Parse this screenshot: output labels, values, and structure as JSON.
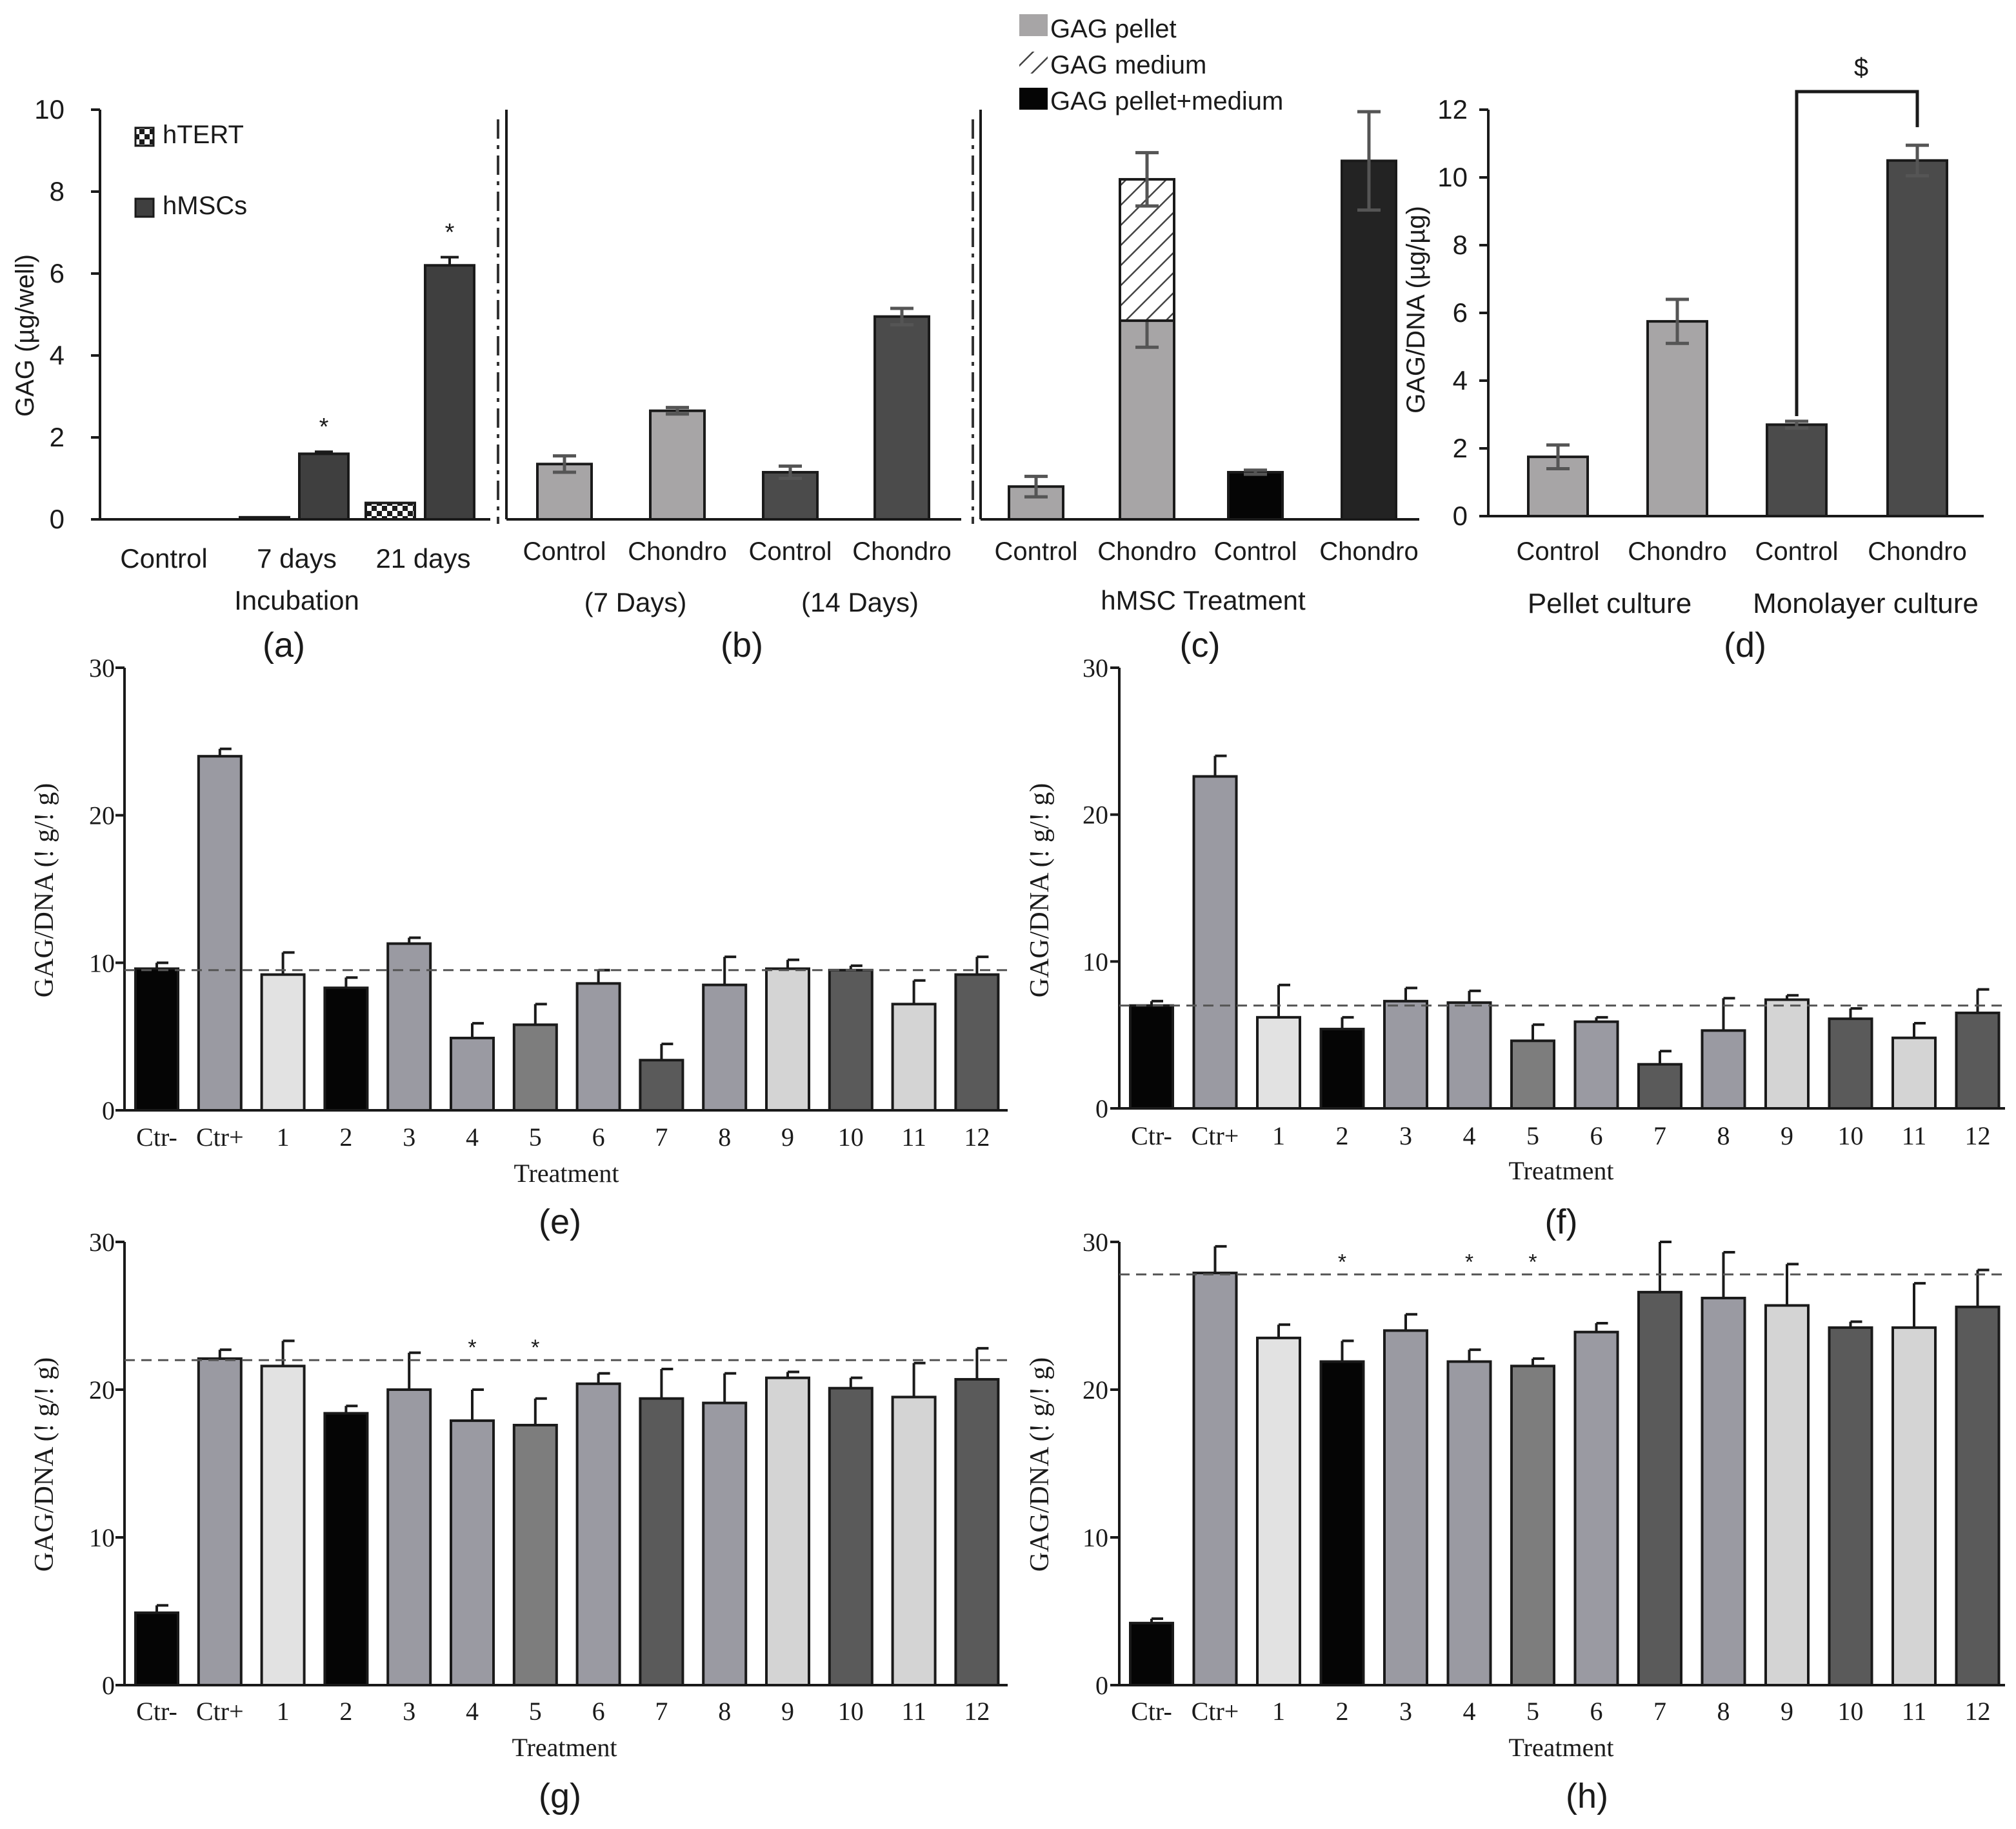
{
  "colors": {
    "black": "#050505",
    "dark": "#3f3f3f",
    "mid_dark": "#5a5a5a",
    "medium": "#7d7d7d",
    "gray": "#9a9aa2",
    "light": "#d4d4d4",
    "pellet_gray": "#a7a5a6",
    "top_dark": "#4b4b4b"
  },
  "chart_data": [
    {
      "id": "a",
      "caption": "(a)",
      "type": "bar",
      "ylabel": "GAG (µg/well)",
      "xlabel": "Incubation",
      "categories": [
        "Control",
        "7 days",
        "21 days"
      ],
      "ylim": [
        0,
        10
      ],
      "yticks": [
        "0",
        "2",
        "4",
        "6",
        "8",
        "10"
      ],
      "series": [
        {
          "name": "hTERT",
          "pattern": "checker",
          "values": [
            0,
            0.05,
            0.4
          ]
        },
        {
          "name": "hMSCs",
          "color": "#3f3f3f",
          "values": [
            0,
            1.6,
            6.2
          ],
          "errors": [
            0,
            0.05,
            0.2
          ],
          "marks": [
            "",
            "*",
            "*"
          ]
        }
      ],
      "legend": "top-left"
    },
    {
      "id": "b",
      "caption": "(b)",
      "type": "bar",
      "categories": [
        "Control",
        "Chondro",
        "Control",
        "Chondro"
      ],
      "group_labels": [
        "(7 Days)",
        "(14 Days)"
      ],
      "ylim": [
        0,
        10
      ],
      "values": [
        1.35,
        2.65,
        1.15,
        4.95
      ],
      "errors": [
        0.2,
        0.08,
        0.15,
        0.2
      ],
      "colors": [
        "#a7a5a6",
        "#a7a5a6",
        "#4b4b4b",
        "#4b4b4b"
      ]
    },
    {
      "id": "c",
      "caption": "(c)",
      "type": "bar",
      "xlabel": "hMSC Treatment",
      "categories": [
        "Control",
        "Chondro",
        "Control",
        "Chondro"
      ],
      "ylim": [
        0,
        10
      ],
      "legend_entries": [
        "GAG pellet",
        "GAG medium",
        "GAG pellet+medium"
      ],
      "legend": "top",
      "series": [
        {
          "name": "GAG pellet",
          "values": [
            0.8,
            4.85,
            0,
            0
          ],
          "errors": [
            0.25,
            0.65,
            0,
            0
          ]
        },
        {
          "name": "GAG medium",
          "values": [
            0,
            3.45,
            0,
            0
          ],
          "errors": [
            0,
            0.65,
            0,
            0
          ]
        },
        {
          "name": "GAG pellet+medium",
          "values": [
            0,
            0,
            1.15,
            8.75
          ],
          "errors": [
            0,
            0,
            0.05,
            1.2
          ]
        }
      ]
    },
    {
      "id": "d",
      "caption": "(d)",
      "type": "bar",
      "ylabel": "GAG/DNA (µg/µg)",
      "categories": [
        "Control",
        "Chondro",
        "Control",
        "Chondro"
      ],
      "group_labels": [
        "Pellet culture",
        "Monolayer culture"
      ],
      "ylim": [
        0,
        12
      ],
      "yticks": [
        "0",
        "2",
        "4",
        "6",
        "8",
        "10",
        "12"
      ],
      "values": [
        1.75,
        5.75,
        2.7,
        10.5
      ],
      "errors": [
        0.35,
        0.65,
        0.1,
        0.45
      ],
      "colors": [
        "#a7a5a6",
        "#a7a5a6",
        "#4b4b4b",
        "#4b4b4b"
      ],
      "annotation": "$"
    },
    {
      "id": "e",
      "caption": "(e)",
      "type": "bar",
      "ylabel": "GAG/DNA (! g/! g)",
      "xlabel": "Treatment",
      "categories": [
        "Ctr-",
        "Ctr+",
        "1",
        "2",
        "3",
        "4",
        "5",
        "6",
        "7",
        "8",
        "9",
        "10",
        "11",
        "12"
      ],
      "ylim": [
        0,
        30
      ],
      "yticks": [
        "0",
        "10",
        "20",
        "30"
      ],
      "reference_line": 9.5,
      "values": [
        9.6,
        24.0,
        9.2,
        8.3,
        11.3,
        4.9,
        5.8,
        8.6,
        3.4,
        8.5,
        9.6,
        9.5,
        7.2,
        9.2
      ],
      "errors": [
        0.4,
        0.5,
        1.5,
        0.7,
        0.4,
        1.0,
        1.4,
        0.9,
        1.1,
        1.9,
        0.6,
        0.3,
        1.6,
        1.2
      ],
      "colors": [
        "#050505",
        "#9a9aa2",
        "#e2e2e2",
        "#050505",
        "#9a9aa2",
        "#9a9aa2",
        "#7d7d7d",
        "#9a9aa2",
        "#5a5a5a",
        "#9a9aa2",
        "#d4d4d4",
        "#5a5a5a",
        "#d4d4d4",
        "#5a5a5a"
      ],
      "marks": [
        "",
        "",
        "",
        "",
        "",
        "",
        "",
        "",
        "",
        "",
        "",
        "",
        "",
        ""
      ]
    },
    {
      "id": "f",
      "caption": "(f)",
      "type": "bar",
      "ylabel": "GAG/DNA (! g/! g)",
      "xlabel": "Treatment",
      "categories": [
        "Ctr-",
        "Ctr+",
        "1",
        "2",
        "3",
        "4",
        "5",
        "6",
        "7",
        "8",
        "9",
        "10",
        "11",
        "12"
      ],
      "ylim": [
        0,
        30
      ],
      "yticks": [
        "0",
        "10",
        "20",
        "30"
      ],
      "reference_line": 7.0,
      "values": [
        7.0,
        22.6,
        6.2,
        5.4,
        7.3,
        7.2,
        4.6,
        5.9,
        3.0,
        5.3,
        7.4,
        6.1,
        4.8,
        6.5
      ],
      "errors": [
        0.3,
        1.4,
        2.2,
        0.8,
        0.9,
        0.8,
        1.1,
        0.3,
        0.9,
        2.2,
        0.3,
        0.7,
        1.0,
        1.6
      ],
      "colors": [
        "#050505",
        "#9a9aa2",
        "#e2e2e2",
        "#050505",
        "#9a9aa2",
        "#9a9aa2",
        "#7d7d7d",
        "#9a9aa2",
        "#5a5a5a",
        "#9a9aa2",
        "#d4d4d4",
        "#5a5a5a",
        "#d4d4d4",
        "#5a5a5a"
      ],
      "marks": [
        "",
        "",
        "",
        "",
        "",
        "",
        "",
        "",
        "",
        "",
        "",
        "",
        "",
        ""
      ]
    },
    {
      "id": "g",
      "caption": "(g)",
      "type": "bar",
      "ylabel": "GAG/DNA (! g/! g)",
      "xlabel": "Treatment",
      "categories": [
        "Ctr-",
        "Ctr+",
        "1",
        "2",
        "3",
        "4",
        "5",
        "6",
        "7",
        "8",
        "9",
        "10",
        "11",
        "12"
      ],
      "ylim": [
        0,
        30
      ],
      "yticks": [
        "0",
        "10",
        "20",
        "30"
      ],
      "reference_line": 22.0,
      "values": [
        4.9,
        22.1,
        21.6,
        18.4,
        20.0,
        17.9,
        17.6,
        20.4,
        19.4,
        19.1,
        20.8,
        20.1,
        19.5,
        20.7
      ],
      "errors": [
        0.5,
        0.6,
        1.7,
        0.5,
        2.5,
        2.1,
        1.8,
        0.7,
        2.0,
        2.0,
        0.4,
        0.7,
        2.3,
        2.1
      ],
      "colors": [
        "#050505",
        "#9a9aa2",
        "#e2e2e2",
        "#050505",
        "#9a9aa2",
        "#9a9aa2",
        "#7d7d7d",
        "#9a9aa2",
        "#5a5a5a",
        "#9a9aa2",
        "#d4d4d4",
        "#5a5a5a",
        "#d4d4d4",
        "#5a5a5a"
      ],
      "marks": [
        "",
        "",
        "",
        "",
        "",
        "*",
        "*",
        "",
        "",
        "",
        "",
        "",
        "",
        ""
      ]
    },
    {
      "id": "h",
      "caption": "(h)",
      "type": "bar",
      "ylabel": "GAG/DNA (! g/! g)",
      "xlabel": "Treatment",
      "categories": [
        "Ctr-",
        "Ctr+",
        "1",
        "2",
        "3",
        "4",
        "5",
        "6",
        "7",
        "8",
        "9",
        "10",
        "11",
        "12"
      ],
      "ylim": [
        0,
        30
      ],
      "yticks": [
        "0",
        "10",
        "20",
        "30"
      ],
      "reference_line": 27.8,
      "values": [
        4.2,
        27.9,
        23.5,
        21.9,
        24.0,
        21.9,
        21.6,
        23.9,
        26.6,
        26.2,
        25.7,
        24.2,
        24.2,
        25.6
      ],
      "errors": [
        0.3,
        1.8,
        0.9,
        1.4,
        1.1,
        0.8,
        0.5,
        0.6,
        3.4,
        3.1,
        2.8,
        0.4,
        3.0,
        2.5
      ],
      "colors": [
        "#050505",
        "#9a9aa2",
        "#e2e2e2",
        "#050505",
        "#9a9aa2",
        "#9a9aa2",
        "#7d7d7d",
        "#9a9aa2",
        "#5a5a5a",
        "#9a9aa2",
        "#d4d4d4",
        "#5a5a5a",
        "#d4d4d4",
        "#5a5a5a"
      ],
      "marks": [
        "",
        "",
        "",
        "*",
        "",
        "*",
        "*",
        "",
        "",
        "",
        "",
        "",
        "",
        ""
      ]
    }
  ]
}
